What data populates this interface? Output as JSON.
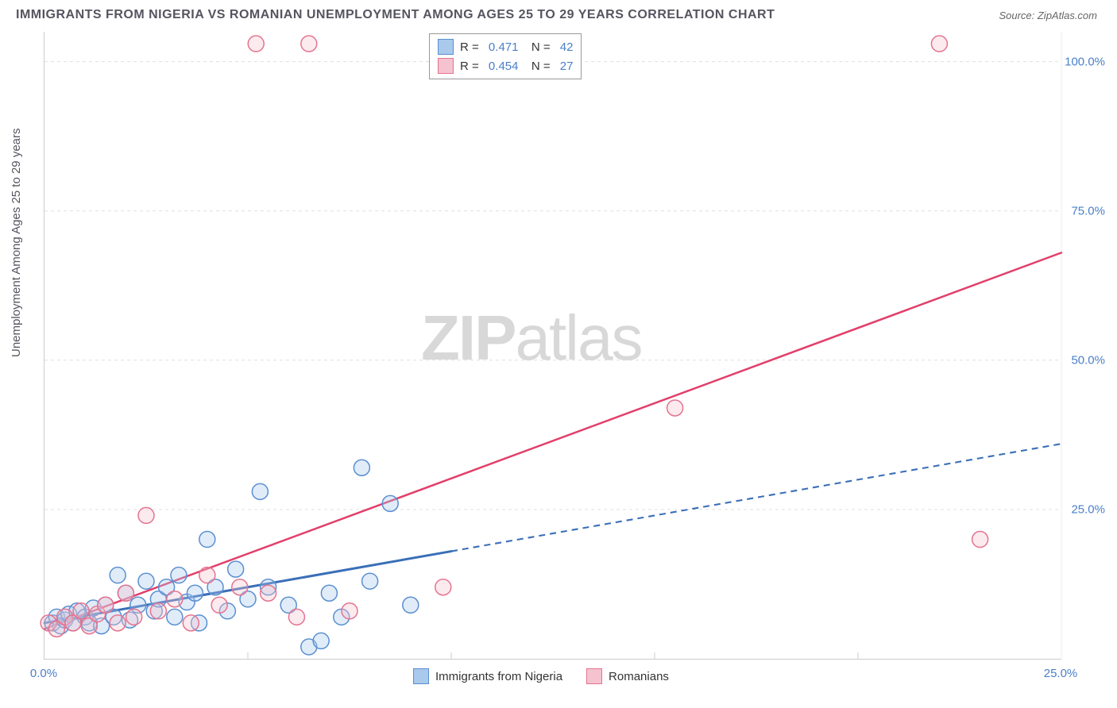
{
  "title": "IMMIGRANTS FROM NIGERIA VS ROMANIAN UNEMPLOYMENT AMONG AGES 25 TO 29 YEARS CORRELATION CHART",
  "source_label": "Source: ",
  "source_name": "ZipAtlas.com",
  "ylabel": "Unemployment Among Ages 25 to 29 years",
  "watermark_a": "ZIP",
  "watermark_b": "atlas",
  "chart": {
    "type": "scatter",
    "xlim": [
      0,
      25
    ],
    "ylim": [
      0,
      105
    ],
    "xtick_labels": [
      "0.0%",
      "25.0%"
    ],
    "xtick_positions": [
      0,
      25
    ],
    "xtick_minor": [
      5,
      10,
      15,
      20
    ],
    "ytick_labels": [
      "25.0%",
      "50.0%",
      "75.0%",
      "100.0%"
    ],
    "ytick_positions": [
      25,
      50,
      75,
      100
    ],
    "grid_color": "#e0e0e0",
    "background_color": "#ffffff",
    "axis_color": "#cccccc",
    "tick_color": "#4a7fc9",
    "label_color": "#555560",
    "marker_radius": 10,
    "marker_stroke_width": 1.5,
    "marker_fill_opacity": 0.35,
    "series": [
      {
        "name": "Immigrants from Nigeria",
        "color_fill": "#a9c9ed",
        "color_stroke": "#5b8fd0",
        "R": "0.471",
        "N": "42",
        "trend": {
          "x1": 0,
          "y1": 6,
          "x2": 10,
          "y2": 18,
          "dash_x2": 25,
          "dash_y2": 36,
          "width": 3,
          "color": "#3a6fb8"
        },
        "points": [
          [
            0.2,
            6
          ],
          [
            0.3,
            7
          ],
          [
            0.4,
            5.5
          ],
          [
            0.5,
            6.5
          ],
          [
            0.6,
            7.5
          ],
          [
            0.7,
            6
          ],
          [
            0.8,
            8
          ],
          [
            1.0,
            7
          ],
          [
            1.1,
            6
          ],
          [
            1.2,
            8.5
          ],
          [
            1.4,
            5.5
          ],
          [
            1.5,
            9
          ],
          [
            1.7,
            7
          ],
          [
            1.8,
            14
          ],
          [
            2.0,
            11
          ],
          [
            2.1,
            6.5
          ],
          [
            2.3,
            9
          ],
          [
            2.5,
            13
          ],
          [
            2.7,
            8
          ],
          [
            2.8,
            10
          ],
          [
            3.0,
            12
          ],
          [
            3.2,
            7
          ],
          [
            3.3,
            14
          ],
          [
            3.5,
            9.5
          ],
          [
            3.7,
            11
          ],
          [
            3.8,
            6
          ],
          [
            4.0,
            20
          ],
          [
            4.2,
            12
          ],
          [
            4.5,
            8
          ],
          [
            4.7,
            15
          ],
          [
            5.0,
            10
          ],
          [
            5.3,
            28
          ],
          [
            5.5,
            12
          ],
          [
            6.0,
            9
          ],
          [
            6.5,
            2
          ],
          [
            6.8,
            3
          ],
          [
            7.0,
            11
          ],
          [
            7.3,
            7
          ],
          [
            7.8,
            32
          ],
          [
            8.0,
            13
          ],
          [
            8.5,
            26
          ],
          [
            9.0,
            9
          ]
        ]
      },
      {
        "name": "Romanians",
        "color_fill": "#f4c3cf",
        "color_stroke": "#e5738f",
        "R": "0.454",
        "N": "27",
        "trend": {
          "x1": 0,
          "y1": 5,
          "x2": 25,
          "y2": 68,
          "width": 2.5,
          "color": "#e23f6a"
        },
        "points": [
          [
            0.1,
            6
          ],
          [
            0.3,
            5
          ],
          [
            0.5,
            7
          ],
          [
            0.7,
            6
          ],
          [
            0.9,
            8
          ],
          [
            1.1,
            5.5
          ],
          [
            1.3,
            7.5
          ],
          [
            1.5,
            9
          ],
          [
            1.8,
            6
          ],
          [
            2.0,
            11
          ],
          [
            2.2,
            7
          ],
          [
            2.5,
            24
          ],
          [
            2.8,
            8
          ],
          [
            3.2,
            10
          ],
          [
            3.6,
            6
          ],
          [
            4.0,
            14
          ],
          [
            4.3,
            9
          ],
          [
            4.8,
            12
          ],
          [
            5.2,
            103
          ],
          [
            5.5,
            11
          ],
          [
            6.2,
            7
          ],
          [
            6.5,
            103
          ],
          [
            7.5,
            8
          ],
          [
            9.8,
            12
          ],
          [
            15.5,
            42
          ],
          [
            22.0,
            103
          ],
          [
            23.0,
            20
          ]
        ]
      }
    ]
  },
  "legend_top": {
    "R_label": "R  =",
    "N_label": "N  ="
  },
  "bottom_legend": [
    {
      "label": "Immigrants from Nigeria",
      "fill": "#a9c9ed",
      "stroke": "#5b8fd0"
    },
    {
      "label": "Romanians",
      "fill": "#f4c3cf",
      "stroke": "#e5738f"
    }
  ]
}
